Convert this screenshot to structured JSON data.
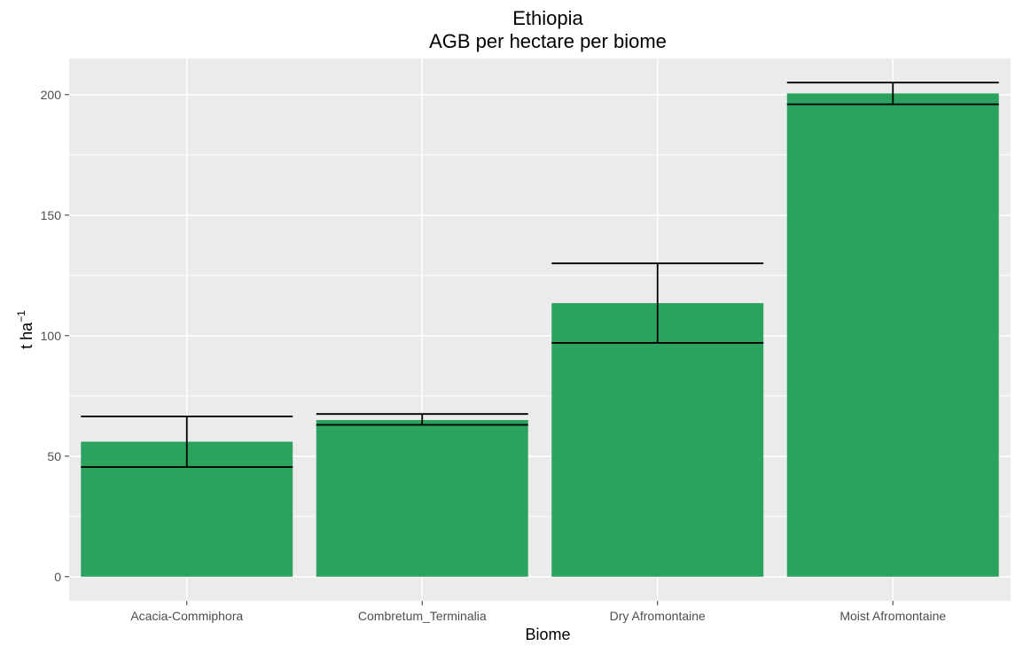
{
  "chart_data": {
    "type": "bar",
    "title": "Ethiopia",
    "subtitle": "AGB per hectare per biome",
    "xlabel": "Biome",
    "ylabel": "t ha",
    "ylabel_superscript": "−1",
    "categories": [
      "Acacia-Commiphora",
      "Combretum_Terminalia",
      "Dry Afromontaine",
      "Moist Afromontaine"
    ],
    "values": [
      56,
      65,
      113.5,
      200.5
    ],
    "error_low": [
      45.5,
      63,
      97,
      196
    ],
    "error_high": [
      66.5,
      67.5,
      130,
      205
    ],
    "ylim": [
      -10,
      215
    ],
    "yticks": [
      0,
      50,
      100,
      150,
      200
    ],
    "ytick_labels": [
      "0",
      "50",
      "100",
      "150",
      "200"
    ],
    "grid": true,
    "colors": {
      "bar": "#2ca25f",
      "panel": "#ebebeb",
      "grid": "#ffffff",
      "errorbar": "#000000"
    }
  }
}
